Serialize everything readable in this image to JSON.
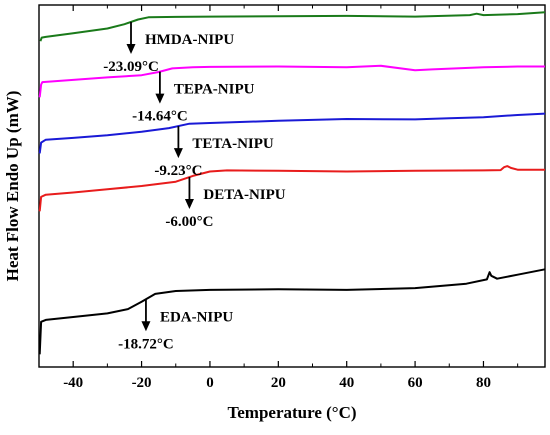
{
  "chart_data": {
    "type": "line",
    "xlabel": "Temperature (°C)",
    "ylabel": "Heat Flow Endo Up (mW)",
    "xlim": [
      -50,
      98
    ],
    "ylim": [
      0,
      10
    ],
    "x_ticks": [
      -40,
      -20,
      0,
      20,
      40,
      60,
      80
    ],
    "x_tick_labels": [
      "-40",
      "-20",
      "0",
      "20",
      "40",
      "60",
      "80"
    ],
    "grid": false,
    "series": [
      {
        "name": "HMDA-NIPU",
        "color": "#1a7a1a",
        "tg_label": "-23.09°C",
        "tg_x": -23.09,
        "points": [
          [
            -49.6,
            9.0
          ],
          [
            -49.2,
            9.1
          ],
          [
            -48,
            9.12
          ],
          [
            -40,
            9.22
          ],
          [
            -30,
            9.35
          ],
          [
            -25,
            9.47
          ],
          [
            -21,
            9.6
          ],
          [
            -18,
            9.66
          ],
          [
            -10,
            9.67
          ],
          [
            0,
            9.68
          ],
          [
            20,
            9.69
          ],
          [
            40,
            9.7
          ],
          [
            60,
            9.68
          ],
          [
            76,
            9.72
          ],
          [
            78,
            9.76
          ],
          [
            80,
            9.72
          ],
          [
            90,
            9.75
          ],
          [
            98,
            9.8
          ]
        ]
      },
      {
        "name": "TEPA-NIPU",
        "color": "#ff00ff",
        "tg_label": "-14.64°C",
        "tg_x": -14.64,
        "points": [
          [
            -49.8,
            7.45
          ],
          [
            -49.4,
            7.8
          ],
          [
            -49,
            7.87
          ],
          [
            -40,
            7.93
          ],
          [
            -30,
            8.0
          ],
          [
            -20,
            8.06
          ],
          [
            -15,
            8.15
          ],
          [
            -11,
            8.25
          ],
          [
            -5,
            8.28
          ],
          [
            0,
            8.29
          ],
          [
            20,
            8.3
          ],
          [
            40,
            8.28
          ],
          [
            50,
            8.32
          ],
          [
            60,
            8.2
          ],
          [
            65,
            8.22
          ],
          [
            80,
            8.28
          ],
          [
            90,
            8.3
          ],
          [
            98,
            8.3
          ]
        ]
      },
      {
        "name": "TETA-NIPU",
        "color": "#1a1ad6",
        "tg_label": "-9.23°C",
        "tg_x": -9.23,
        "points": [
          [
            -49.8,
            5.9
          ],
          [
            -49.4,
            6.2
          ],
          [
            -48,
            6.28
          ],
          [
            -40,
            6.33
          ],
          [
            -30,
            6.4
          ],
          [
            -20,
            6.5
          ],
          [
            -12,
            6.6
          ],
          [
            -6,
            6.72
          ],
          [
            0,
            6.74
          ],
          [
            20,
            6.8
          ],
          [
            40,
            6.85
          ],
          [
            60,
            6.84
          ],
          [
            70,
            6.87
          ],
          [
            80,
            6.9
          ],
          [
            90,
            6.96
          ],
          [
            98,
            7.0
          ]
        ]
      },
      {
        "name": "DETA-NIPU",
        "color": "#e81c1c",
        "tg_label": "-6.00°C",
        "tg_x": -6.0,
        "points": [
          [
            -49.8,
            4.3
          ],
          [
            -49.4,
            4.7
          ],
          [
            -48,
            4.76
          ],
          [
            -40,
            4.82
          ],
          [
            -30,
            4.91
          ],
          [
            -20,
            5.0
          ],
          [
            -10,
            5.12
          ],
          [
            -5,
            5.28
          ],
          [
            0,
            5.4
          ],
          [
            5,
            5.43
          ],
          [
            20,
            5.42
          ],
          [
            40,
            5.4
          ],
          [
            60,
            5.42
          ],
          [
            80,
            5.43
          ],
          [
            85,
            5.44
          ],
          [
            86,
            5.52
          ],
          [
            87,
            5.55
          ],
          [
            88,
            5.5
          ],
          [
            90,
            5.45
          ],
          [
            98,
            5.45
          ]
        ]
      },
      {
        "name": "EDA-NIPU",
        "color": "#000000",
        "tg_label": "-18.72°C",
        "tg_x": -18.72,
        "points": [
          [
            -49.8,
            0.35
          ],
          [
            -49.4,
            1.25
          ],
          [
            -48,
            1.3
          ],
          [
            -40,
            1.38
          ],
          [
            -30,
            1.48
          ],
          [
            -24,
            1.6
          ],
          [
            -20,
            1.8
          ],
          [
            -16,
            2.02
          ],
          [
            -10,
            2.1
          ],
          [
            0,
            2.13
          ],
          [
            20,
            2.15
          ],
          [
            40,
            2.13
          ],
          [
            60,
            2.18
          ],
          [
            75,
            2.3
          ],
          [
            81,
            2.42
          ],
          [
            81.8,
            2.62
          ],
          [
            82.3,
            2.52
          ],
          [
            84,
            2.44
          ],
          [
            90,
            2.55
          ],
          [
            98,
            2.7
          ]
        ]
      }
    ]
  }
}
